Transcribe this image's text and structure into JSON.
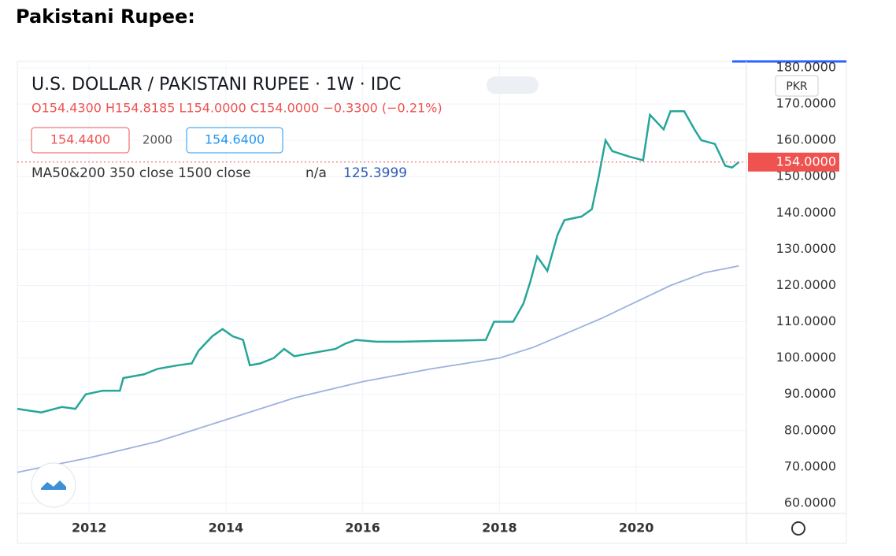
{
  "page_title": "Pakistani Rupee:",
  "chart_data": {
    "type": "line",
    "title": "U.S. DOLLAR / PAKISTANI RUPEE · 1W · IDC",
    "ohlc": "O154.4300 H154.8185 L154.0000 C154.0000 −0.3300 (−0.21%)",
    "buttons": [
      "154.4400",
      "2000",
      "154.6400"
    ],
    "indicator": "MA50&200 350 close 1500 close",
    "indicator_na": "n/a",
    "indicator_value": "125.3999",
    "currency": "PKR",
    "last_price_label": "154.0000",
    "xlim": [
      2010.95,
      2021.61
    ],
    "xticks": [
      2012,
      2014,
      2016,
      2018,
      2020
    ],
    "ylim": [
      57.6,
      181.3
    ],
    "yticks": [
      {
        "value": 60,
        "label": "60.0000"
      },
      {
        "value": 70,
        "label": "70.0000"
      },
      {
        "value": 80,
        "label": "80.0000"
      },
      {
        "value": 90,
        "label": "90.0000"
      },
      {
        "value": 100,
        "label": "100.0000"
      },
      {
        "value": 110,
        "label": "110.0000"
      },
      {
        "value": 120,
        "label": "120.0000"
      },
      {
        "value": 130,
        "label": "130.0000"
      },
      {
        "value": 140,
        "label": "140.0000"
      },
      {
        "value": 150,
        "label": "150.0000"
      },
      {
        "value": 160,
        "label": "160.0000"
      },
      {
        "value": 170,
        "label": "170.0000"
      },
      {
        "value": 180,
        "label": "180.0000"
      }
    ],
    "grid": true,
    "series": [
      {
        "name": "USD/PKR",
        "color": "#26a69a",
        "x": [
          2010.95,
          2011.3,
          2011.6,
          2011.8,
          2011.95,
          2012.2,
          2012.45,
          2012.5,
          2012.8,
          2013.0,
          2013.3,
          2013.5,
          2013.6,
          2013.8,
          2013.95,
          2014.1,
          2014.25,
          2014.35,
          2014.5,
          2014.7,
          2014.85,
          2015.0,
          2015.3,
          2015.6,
          2015.75,
          2015.9,
          2016.2,
          2016.6,
          2017.0,
          2017.4,
          2017.8,
          2017.92,
          2018.2,
          2018.35,
          2018.45,
          2018.55,
          2018.7,
          2018.85,
          2018.95,
          2019.2,
          2019.35,
          2019.45,
          2019.55,
          2019.65,
          2019.9,
          2020.1,
          2020.2,
          2020.4,
          2020.5,
          2020.7,
          2020.85,
          2020.95,
          2021.15,
          2021.3,
          2021.4,
          2021.5
        ],
        "values": [
          86,
          85,
          86.5,
          86,
          90,
          91,
          91,
          94.5,
          95.5,
          97,
          98,
          98.5,
          102,
          106,
          108,
          106,
          105,
          98,
          98.5,
          100,
          102.5,
          100.5,
          101.5,
          102.5,
          104,
          105,
          104.5,
          104.5,
          104.7,
          104.8,
          105,
          110,
          110,
          115,
          121,
          128,
          124,
          134,
          138,
          139,
          141,
          150,
          160,
          157,
          155.5,
          154.5,
          167,
          163,
          168,
          168,
          163,
          160,
          159,
          153,
          152.5,
          154
        ]
      },
      {
        "name": "MA",
        "color": "#9db2dd",
        "x": [
          2010.95,
          2012,
          2013,
          2014,
          2015,
          2016,
          2017,
          2018,
          2018.5,
          2019,
          2019.5,
          2020,
          2020.5,
          2021,
          2021.5
        ],
        "values": [
          68.5,
          72.5,
          77,
          83,
          89,
          93.5,
          97,
          100,
          103,
          107,
          111,
          115.5,
          120,
          123.5,
          125.4
        ]
      }
    ]
  }
}
